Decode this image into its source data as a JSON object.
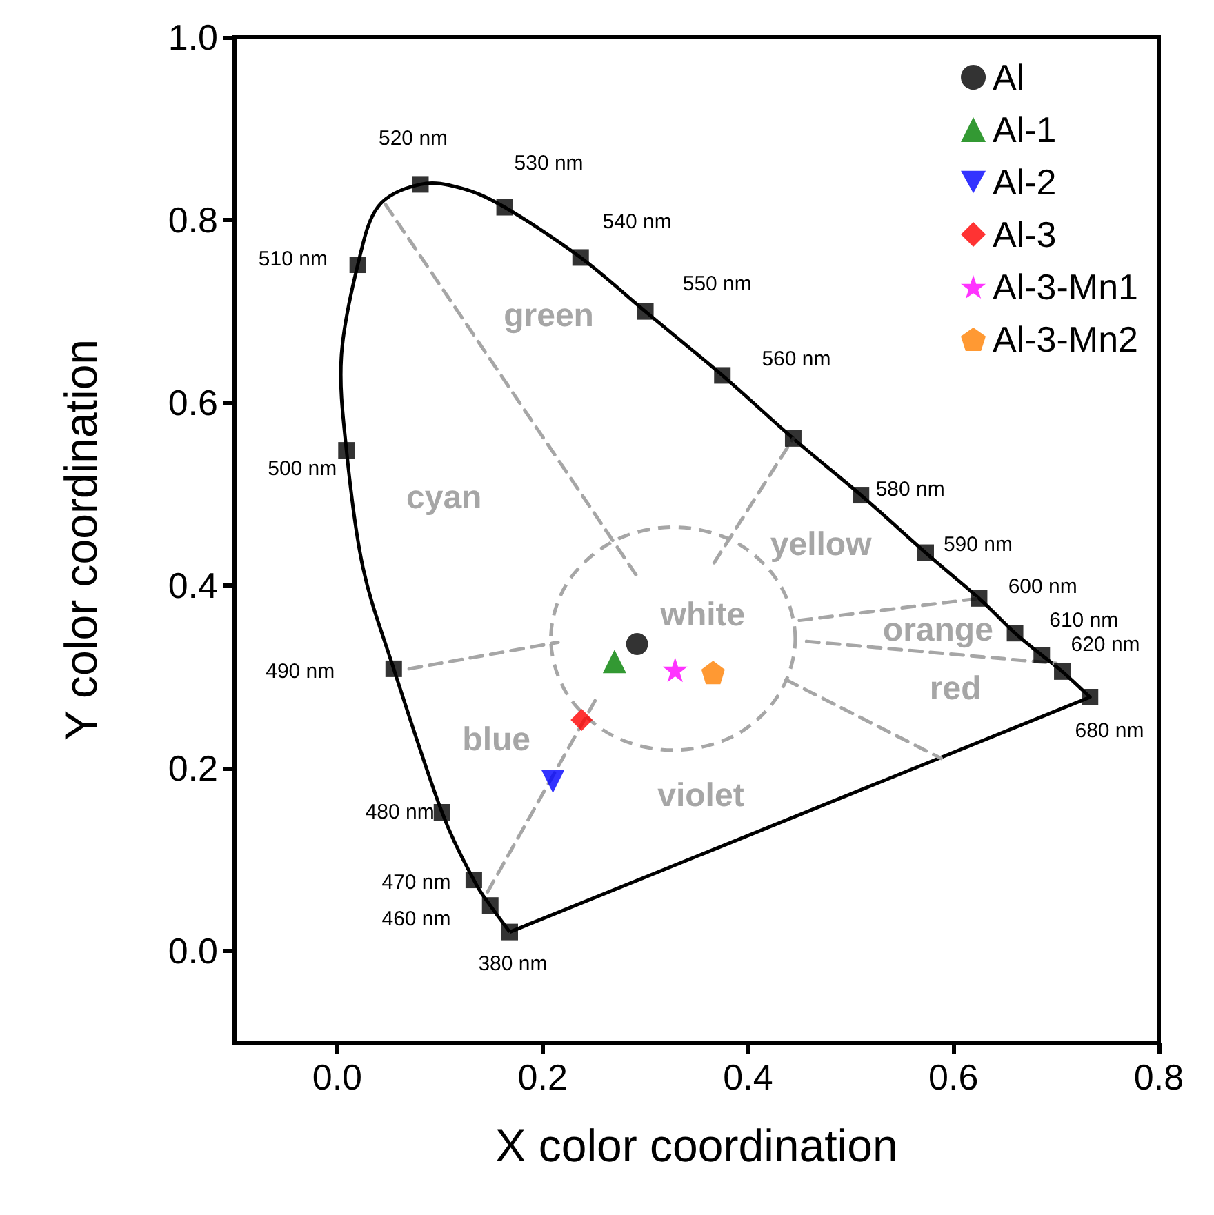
{
  "chart_data": {
    "type": "scatter",
    "xlabel": "X color coordination",
    "ylabel": "Y color coordination",
    "xlim": [
      -0.1,
      0.8
    ],
    "xticks": [
      {
        "value": 0,
        "label": "0.0"
      },
      {
        "value": 0.2,
        "label": "0.2"
      },
      {
        "value": 0.4,
        "label": "0.4"
      },
      {
        "value": 0.6,
        "label": "0.6"
      },
      {
        "value": 0.8,
        "label": "0.8"
      }
    ],
    "ylim": [
      -0.1,
      1.0
    ],
    "yticks": [
      {
        "value": 0,
        "label": "0.0"
      },
      {
        "value": 0.2,
        "label": "0.2"
      },
      {
        "value": 0.4,
        "label": "0.4"
      },
      {
        "value": 0.6,
        "label": "0.6"
      },
      {
        "value": 0.8,
        "label": "0.8"
      },
      {
        "value": 1.0,
        "label": "1.0"
      }
    ],
    "legend": "top right",
    "annotations": [
      "380 nm",
      "460 nm",
      "470 nm",
      "480 nm",
      "490 nm",
      "500 nm",
      "510 nm",
      "520 nm",
      "530 nm",
      "540 nm",
      "550 nm",
      "560 nm",
      "580 nm",
      "590 nm",
      "600 nm",
      "610 nm",
      "620 nm",
      "680 nm",
      "green",
      "cyan",
      "yellow",
      "white",
      "orange",
      "red",
      "blue",
      "violet"
    ],
    "series": [
      {
        "type": "line",
        "color": "#a6a6a6",
        "marker": "none",
        "line_style": "dashed",
        "x": [
          0.047,
          0.292
        ],
        "values": [
          0.817,
          0.41
        ]
      },
      {
        "type": "line",
        "color": "#a6a6a6",
        "marker": "none",
        "line_style": "dashed",
        "x": [
          0.367,
          0.444
        ],
        "values": [
          0.425,
          0.561
        ]
      },
      {
        "type": "line",
        "color": "#a6a6a6",
        "marker": "none",
        "line_style": "dashed",
        "x": [
          0.45,
          0.625
        ],
        "values": [
          0.362,
          0.386
        ]
      },
      {
        "type": "line",
        "color": "#a6a6a6",
        "marker": "none",
        "line_style": "dashed",
        "x": [
          0.457,
          0.7
        ],
        "values": [
          0.339,
          0.315
        ]
      },
      {
        "type": "line",
        "color": "#a6a6a6",
        "marker": "none",
        "line_style": "dashed",
        "x": [
          0.437,
          0.588
        ],
        "values": [
          0.297,
          0.211
        ]
      },
      {
        "type": "line",
        "color": "#a6a6a6",
        "marker": "none",
        "line_style": "dashed",
        "x": [
          0.07,
          0.215
        ],
        "values": [
          0.309,
          0.338
        ]
      },
      {
        "type": "line",
        "color": "#a6a6a6",
        "marker": "none",
        "line_style": "dashed",
        "x": [
          0.251,
          0.144
        ],
        "values": [
          0.274,
          0.06
        ]
      },
      {
        "color": "#000000",
        "marker": "square",
        "x": [
          0.168,
          0.149,
          0.133,
          0.102,
          0.055,
          0.009,
          0.02,
          0.081,
          0.163,
          0.237,
          0.3,
          0.375,
          0.444,
          0.51,
          0.573,
          0.625,
          0.66,
          0.686,
          0.706,
          0.733
        ],
        "values": [
          0.021,
          0.05,
          0.078,
          0.152,
          0.309,
          0.548,
          0.751,
          0.839,
          0.814,
          0.759,
          0.7,
          0.63,
          0.561,
          0.499,
          0.436,
          0.386,
          0.348,
          0.324,
          0.306,
          0.278
        ]
      },
      {
        "name": "Al",
        "color": "#000000",
        "marker": "circle",
        "x": [
          0.292
        ],
        "values": [
          0.336
        ]
      },
      {
        "name": "Al-1",
        "color": "#008000",
        "marker": "triangle",
        "x": [
          0.27
        ],
        "values": [
          0.317
        ]
      },
      {
        "name": "Al-2",
        "color": "#0000ff",
        "marker": "triangle-down",
        "x": [
          0.21
        ],
        "values": [
          0.186
        ]
      },
      {
        "name": "Al-3",
        "color": "#ff0000",
        "marker": "diamond",
        "x": [
          0.238
        ],
        "values": [
          0.253
        ]
      },
      {
        "name": "Al-3-Mn1",
        "color": "#ff00ff",
        "marker": "star",
        "x": [
          0.329
        ],
        "values": [
          0.308
        ]
      },
      {
        "name": "Al-3-Mn2",
        "color": "#ff8000",
        "x": [
          0.366
        ],
        "values": [
          0.305
        ]
      }
    ]
  }
}
